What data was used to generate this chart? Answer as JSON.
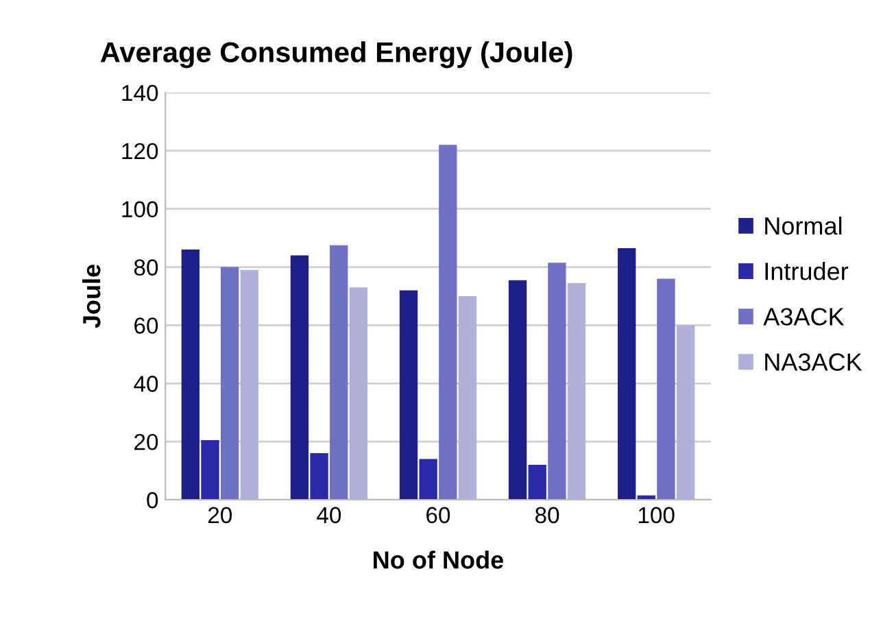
{
  "chart_data": {
    "type": "bar",
    "title": "Average Consumed Energy (Joule)",
    "xlabel": "No of Node",
    "ylabel": "Joule",
    "categories": [
      "20",
      "40",
      "60",
      "80",
      "100"
    ],
    "series": [
      {
        "name": "Normal",
        "color": "#20208a",
        "values": [
          86,
          84,
          72,
          75.5,
          86.5
        ]
      },
      {
        "name": "Intruder",
        "color": "#2a2aa8",
        "values": [
          20.5,
          16,
          14,
          12,
          1.5
        ]
      },
      {
        "name": "A3ACK",
        "color": "#7070c4",
        "values": [
          80,
          87.5,
          122,
          81.5,
          76
        ]
      },
      {
        "name": "NA3ACK",
        "color": "#b0b0da",
        "values": [
          79,
          73,
          70,
          74.5,
          60
        ]
      }
    ],
    "ylim": [
      0,
      140
    ],
    "yticks": [
      0,
      20,
      40,
      60,
      80,
      100,
      120,
      140
    ],
    "grid": "y",
    "legend": "right"
  }
}
